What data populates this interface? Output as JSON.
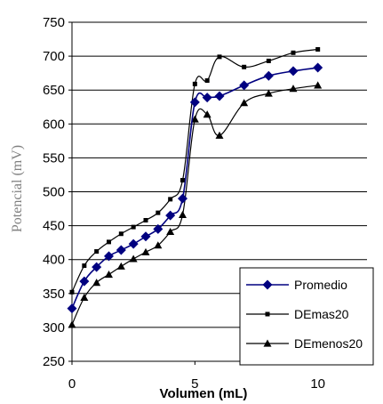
{
  "chart_data": {
    "type": "line",
    "title": "",
    "xlabel": "Volumen (mL)",
    "ylabel": "Potencial (mV)",
    "xlim": [
      0,
      12
    ],
    "ylim": [
      250,
      750
    ],
    "x_ticks": [
      "0",
      "5",
      "10"
    ],
    "y_ticks": [
      "250",
      "300",
      "350",
      "400",
      "450",
      "500",
      "550",
      "600",
      "650",
      "700",
      "750"
    ],
    "grid": "horizontal",
    "legend_position": "bottom-right",
    "series": [
      {
        "name": "Promedio",
        "color": "#000080",
        "marker": "diamond",
        "x": [
          0,
          0.5,
          1,
          1.5,
          2,
          2.5,
          3,
          3.5,
          4,
          4.5,
          5,
          5.5,
          6,
          7,
          8,
          9,
          10
        ],
        "y": [
          328,
          368,
          389,
          405,
          414,
          423,
          434,
          445,
          465,
          490,
          632,
          639,
          641,
          657,
          671,
          678,
          683
        ]
      },
      {
        "name": "DEmas20",
        "color": "#000000",
        "marker": "square",
        "x": [
          0,
          0.5,
          1,
          1.5,
          2,
          2.5,
          3,
          3.5,
          4,
          4.5,
          5,
          5.5,
          6,
          7,
          8,
          9,
          10
        ],
        "y": [
          352,
          391,
          412,
          426,
          438,
          448,
          458,
          469,
          489,
          517,
          659,
          664,
          699,
          684,
          693,
          705,
          710
        ]
      },
      {
        "name": "DEmenos20",
        "color": "#000000",
        "marker": "triangle",
        "x": [
          0,
          0.5,
          1,
          1.5,
          2,
          2.5,
          3,
          3.5,
          4,
          4.5,
          5,
          5.5,
          6,
          7,
          8,
          9,
          10
        ],
        "y": [
          304,
          344,
          366,
          378,
          390,
          401,
          411,
          421,
          441,
          466,
          607,
          614,
          583,
          631,
          645,
          652,
          657
        ]
      }
    ]
  }
}
